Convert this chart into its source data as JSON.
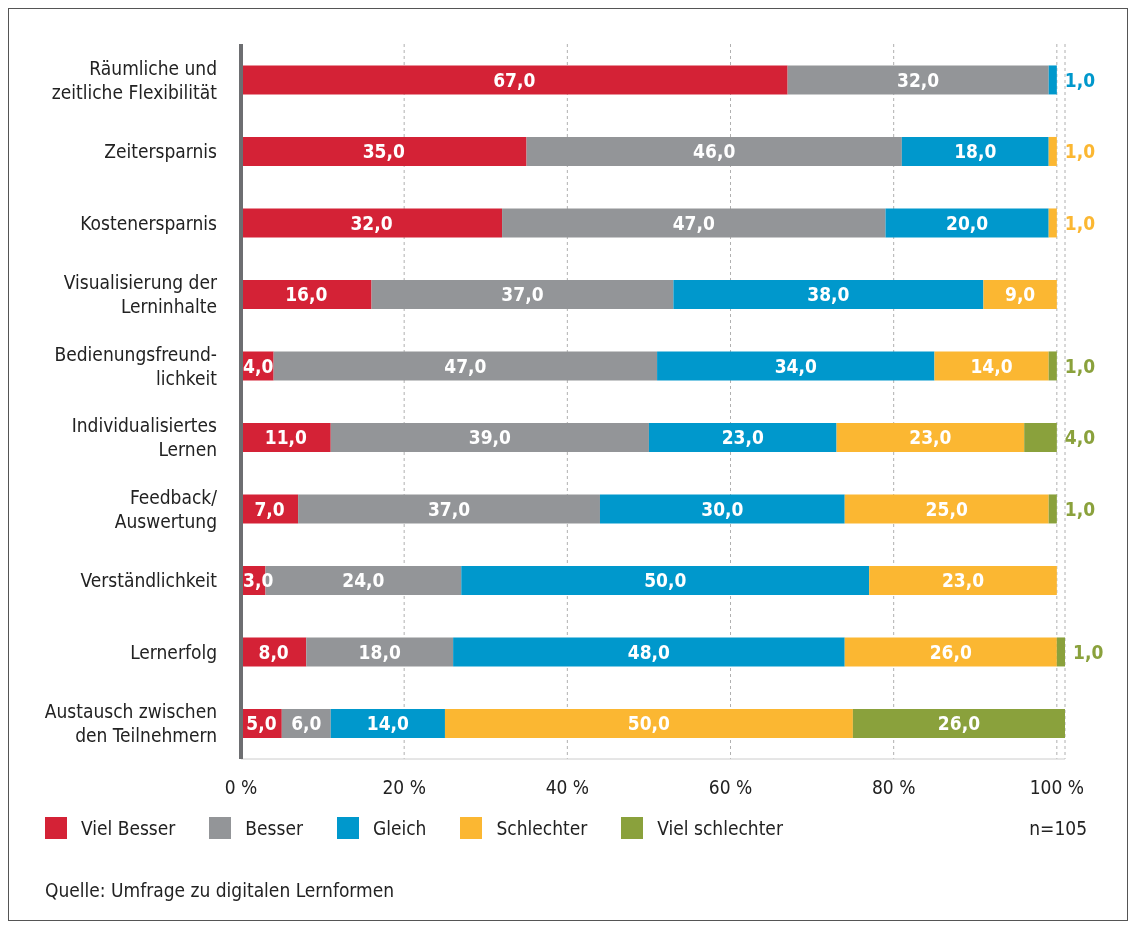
{
  "chart_data": {
    "type": "bar",
    "orientation": "horizontal",
    "stacked": true,
    "categories": [
      "Räumliche und\nzeitliche Flexibilität",
      "Zeitersparnis",
      "Kostenersparnis",
      "Visualisierung der\nLerninhalte",
      "Bedienungsfreund-\nlichkeit",
      "Individualisiertes\nLernen",
      "Feedback/\nAuswertung",
      "Verständlichkeit",
      "Lernerfolg",
      "Austausch zwischen\nden Teilnehmern"
    ],
    "series": [
      {
        "name": "Viel Besser",
        "color": "#d42236",
        "values": [
          67,
          35,
          32,
          16,
          4,
          11,
          7,
          3,
          8,
          5
        ],
        "value_labels": [
          "67,0",
          "35,0",
          "32,0",
          "16,0",
          "4,0",
          "11,0",
          "7,0",
          "3,0",
          "8,0",
          "5,0"
        ]
      },
      {
        "name": "Besser",
        "color": "#939598",
        "values": [
          32,
          46,
          47,
          37,
          47,
          39,
          37,
          24,
          18,
          6
        ],
        "value_labels": [
          "32,0",
          "46,0",
          "47,0",
          "37,0",
          "47,0",
          "39,0",
          "37,0",
          "24,0",
          "18,0",
          "6,0"
        ]
      },
      {
        "name": "Gleich",
        "color": "#0098cc",
        "values": [
          1,
          18,
          20,
          38,
          34,
          23,
          30,
          50,
          48,
          14
        ],
        "value_labels": [
          "1,0",
          "18,0",
          "20,0",
          "38,0",
          "34,0",
          "23,0",
          "30,0",
          "50,0",
          "48,0",
          "14,0"
        ]
      },
      {
        "name": "Schlechter",
        "color": "#fbb732",
        "values": [
          null,
          1,
          1,
          9,
          14,
          23,
          25,
          23,
          26,
          50
        ],
        "value_labels": [
          null,
          "1,0",
          "1,0",
          "9,0",
          "14,0",
          "23,0",
          "25,0",
          "23,0",
          "26,0",
          "50,0"
        ]
      },
      {
        "name": "Viel schlechter",
        "color": "#8aa13c",
        "values": [
          null,
          null,
          null,
          null,
          1,
          4,
          1,
          null,
          1,
          26
        ],
        "value_labels": [
          null,
          null,
          null,
          null,
          "1,0",
          "4,0",
          "1,0",
          null,
          "1,0",
          "26,0"
        ]
      }
    ],
    "xlim": [
      0,
      101
    ],
    "xticks": [
      {
        "value": 0,
        "label": "0 %"
      },
      {
        "value": 20,
        "label": "20 %"
      },
      {
        "value": 40,
        "label": "40 %"
      },
      {
        "value": 60,
        "label": "60 %"
      },
      {
        "value": 80,
        "label": "80 %"
      },
      {
        "value": 100,
        "label": "100 %"
      }
    ],
    "grid": "x",
    "legend": "bottom",
    "annotations": [
      "n=105",
      "Quelle: Umfrage zu digitalen Lernformen"
    ]
  }
}
